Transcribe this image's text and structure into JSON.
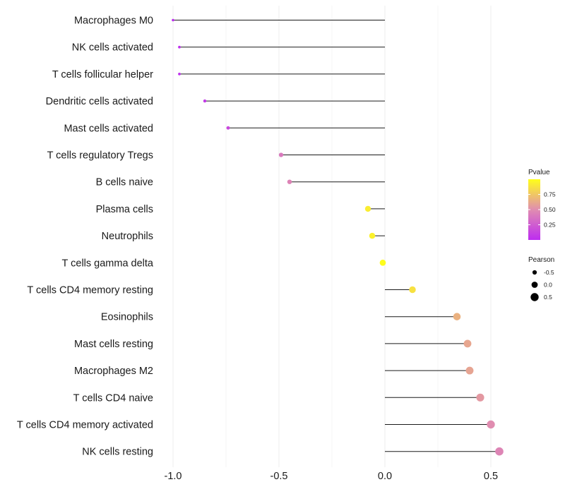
{
  "chart_data": {
    "type": "lollipop",
    "title": "",
    "xlabel": "",
    "ylabel": "",
    "xlim": [
      -1.0,
      0.55
    ],
    "xticks": [
      -1.0,
      -0.5,
      0.0,
      0.5
    ],
    "xtick_labels": [
      "-1.0",
      "-0.5",
      "0.0",
      "0.5"
    ],
    "grid": true,
    "points": [
      {
        "label": "Macrophages M0",
        "pearson": -1.0,
        "pvalue": 0.0
      },
      {
        "label": "NK cells activated",
        "pearson": -0.97,
        "pvalue": 0.02
      },
      {
        "label": "T cells follicular helper",
        "pearson": -0.97,
        "pvalue": 0.02
      },
      {
        "label": "Dendritic cells activated",
        "pearson": -0.85,
        "pvalue": 0.07
      },
      {
        "label": "Mast cells activated",
        "pearson": -0.74,
        "pvalue": 0.15
      },
      {
        "label": "T cells regulatory  Tregs ",
        "pearson": -0.49,
        "pvalue": 0.4
      },
      {
        "label": "B cells naive",
        "pearson": -0.45,
        "pvalue": 0.45
      },
      {
        "label": "Plasma cells",
        "pearson": -0.08,
        "pvalue": 0.92
      },
      {
        "label": "Neutrophils",
        "pearson": -0.06,
        "pvalue": 0.94
      },
      {
        "label": "T cells gamma delta",
        "pearson": -0.01,
        "pvalue": 0.99
      },
      {
        "label": "T cells CD4 memory resting",
        "pearson": 0.13,
        "pvalue": 0.87
      },
      {
        "label": "Eosinophils",
        "pearson": 0.34,
        "pvalue": 0.66
      },
      {
        "label": "Mast cells resting",
        "pearson": 0.39,
        "pvalue": 0.61
      },
      {
        "label": "Macrophages M2",
        "pearson": 0.4,
        "pvalue": 0.6
      },
      {
        "label": "T cells CD4 naive",
        "pearson": 0.45,
        "pvalue": 0.55
      },
      {
        "label": "T cells CD4 memory activated",
        "pearson": 0.5,
        "pvalue": 0.5
      },
      {
        "label": "NK cells resting",
        "pearson": 0.54,
        "pvalue": 0.46
      }
    ],
    "legend": {
      "position": "right",
      "color": {
        "title": "Pvalue",
        "breaks": [
          0.75,
          0.5,
          0.25
        ],
        "break_labels": [
          "0.75",
          "0.50",
          "0.25"
        ],
        "range": [
          0.0,
          1.0
        ],
        "low_color": "#bd2cf0",
        "mid_color": "#e08db0",
        "high_color": "#ffff1a"
      },
      "size": {
        "title": "Pearson",
        "breaks": [
          -0.5,
          0.0,
          0.5
        ],
        "break_labels": [
          "-0.5",
          "0.0",
          "0.5"
        ]
      }
    }
  }
}
